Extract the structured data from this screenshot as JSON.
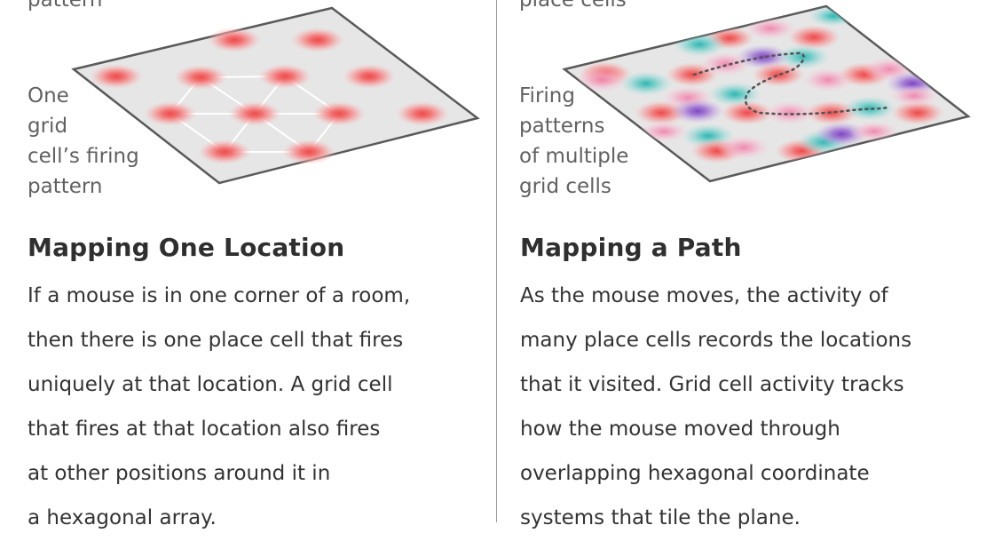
{
  "left_panel": {
    "top_label": "pattern",
    "side_label": "One\ngrid\ncell’s firing\npattern",
    "heading": "Mapping One Location",
    "body_lines": [
      "If a mouse is in one corner of a room,",
      "then there is one place cell that fires",
      "uniquely at that location. A grid cell",
      "that fires at that location also fires",
      "at other positions around it in",
      "a hexagonal array."
    ]
  },
  "right_panel": {
    "top_label": "place cells",
    "side_label": "Firing\npatterns\nof multiple\ngrid cells",
    "heading": "Mapping a Path",
    "body_lines": [
      "As the mouse moves, the activity of",
      "many place cells records the locations",
      "that it visited. Grid cell activity tracks",
      "how the mouse moved through",
      "overlapping hexagonal coordinate",
      "systems that tile the plane."
    ]
  },
  "colors": {
    "red": "#f26b6b",
    "pink": "#f3a9c4",
    "teal": "#5fc9c4",
    "purple": "#9a6bd0",
    "plane": "#e6e6e6",
    "plane_stroke": "#5a5a5a",
    "path_dots": "#555555"
  }
}
